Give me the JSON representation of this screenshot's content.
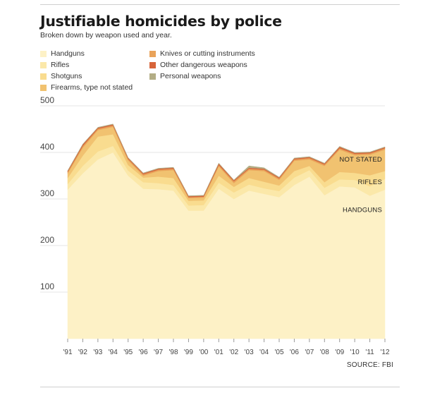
{
  "title": "Justifiable homicides by police",
  "subtitle": "Broken down by weapon used and year.",
  "source": "SOURCE: FBI",
  "chart_data": {
    "type": "area",
    "stacked": true,
    "categories": [
      "'91",
      "'92",
      "'93",
      "'94",
      "'95",
      "'96",
      "'97",
      "'98",
      "'99",
      "'00",
      "'01",
      "'02",
      "'03",
      "'04",
      "'05",
      "'06",
      "'07",
      "'08",
      "'09",
      "'10",
      "'11",
      "'12"
    ],
    "ylim": [
      0,
      500
    ],
    "yticks": [
      100,
      200,
      300,
      400,
      500
    ],
    "grid": true,
    "legend_position": "top-left",
    "series": [
      {
        "name": "Handguns",
        "color": "#fdf1c6",
        "values": [
          320,
          355,
          385,
          400,
          350,
          322,
          321,
          318,
          275,
          275,
          322,
          300,
          318,
          311,
          304,
          330,
          348,
          308,
          327,
          325,
          307,
          320
        ]
      },
      {
        "name": "Rifles",
        "color": "#fbe8a9",
        "values": [
          12,
          16,
          17,
          14,
          11,
          14,
          13,
          12,
          11,
          12,
          13,
          14,
          13,
          12,
          13,
          16,
          14,
          16,
          15,
          16,
          20,
          23
        ]
      },
      {
        "name": "Shotguns",
        "color": "#f9dc8f",
        "values": [
          13,
          22,
          32,
          25,
          12,
          10,
          14,
          15,
          10,
          10,
          15,
          12,
          14,
          14,
          12,
          14,
          9,
          12,
          16,
          15,
          24,
          17
        ]
      },
      {
        "name": "Firearms, type not stated",
        "color": "#f1c270",
        "values": [
          10,
          17,
          14,
          16,
          10,
          4,
          12,
          17,
          6,
          6,
          20,
          8,
          17,
          23,
          12,
          22,
          14,
          35,
          48,
          38,
          44,
          46
        ]
      },
      {
        "name": "Knives or cutting instruments",
        "color": "#e9a35a",
        "values": [
          3,
          4,
          3,
          3,
          3,
          3,
          3,
          3,
          2,
          2,
          3,
          4,
          3,
          3,
          3,
          3,
          3,
          3,
          3,
          3,
          3,
          3
        ]
      },
      {
        "name": "Other dangerous weapons",
        "color": "#d7643a",
        "values": [
          2,
          3,
          2,
          2,
          2,
          2,
          2,
          2,
          2,
          2,
          3,
          2,
          2,
          2,
          2,
          2,
          2,
          2,
          3,
          2,
          2,
          2
        ]
      },
      {
        "name": "Personal weapons",
        "color": "#b3ad85",
        "values": [
          1,
          1,
          1,
          1,
          1,
          1,
          1,
          1,
          1,
          1,
          1,
          1,
          4,
          2,
          1,
          1,
          1,
          1,
          1,
          1,
          1,
          1
        ]
      }
    ],
    "annotations": [
      {
        "label": "NOT STATED",
        "series": "Firearms, type not stated"
      },
      {
        "label": "RIFLES",
        "series": "Rifles"
      },
      {
        "label": "HANDGUNS",
        "series": "Handguns"
      }
    ]
  }
}
